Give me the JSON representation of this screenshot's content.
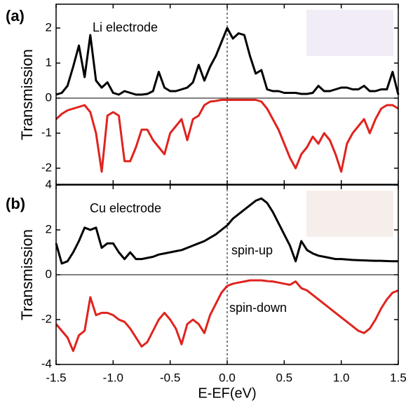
{
  "chart_data": [
    {
      "type": "line",
      "panel_label": "(a)",
      "annotation": "Li electrode",
      "y_label": "Transmission",
      "xlim": [
        -1.5,
        1.5
      ],
      "ylim": [
        -2.46,
        2.68
      ],
      "yticks": [
        -2,
        -1,
        0,
        1,
        2
      ],
      "x": [
        -1.5,
        -1.45,
        -1.4,
        -1.35,
        -1.3,
        -1.25,
        -1.2,
        -1.15,
        -1.1,
        -1.05,
        -1.0,
        -0.95,
        -0.9,
        -0.85,
        -0.8,
        -0.75,
        -0.7,
        -0.65,
        -0.6,
        -0.55,
        -0.5,
        -0.45,
        -0.4,
        -0.35,
        -0.3,
        -0.25,
        -0.2,
        -0.15,
        -0.1,
        -0.05,
        0,
        0.05,
        0.1,
        0.15,
        0.2,
        0.25,
        0.3,
        0.35,
        0.4,
        0.45,
        0.5,
        0.55,
        0.6,
        0.65,
        0.7,
        0.75,
        0.8,
        0.85,
        0.9,
        0.95,
        1.0,
        1.05,
        1.1,
        1.15,
        1.2,
        1.25,
        1.3,
        1.35,
        1.4,
        1.45,
        1.5
      ],
      "series": [
        {
          "color": "#000000",
          "values": [
            0.1,
            0.15,
            0.35,
            0.9,
            1.5,
            0.6,
            1.8,
            0.5,
            0.3,
            0.45,
            0.15,
            0.1,
            0.2,
            0.15,
            0.1,
            0.1,
            0.12,
            0.2,
            0.75,
            0.3,
            0.2,
            0.2,
            0.25,
            0.3,
            0.45,
            0.95,
            0.5,
            0.9,
            1.2,
            1.6,
            2.0,
            1.7,
            1.85,
            1.8,
            1.2,
            0.7,
            0.8,
            0.25,
            0.2,
            0.2,
            0.15,
            0.15,
            0.15,
            0.12,
            0.12,
            0.15,
            0.35,
            0.2,
            0.2,
            0.25,
            0.3,
            0.3,
            0.25,
            0.25,
            0.35,
            0.2,
            0.2,
            0.25,
            0.25,
            0.75,
            0.1
          ]
        },
        {
          "color": "#e0231e",
          "values": [
            -0.6,
            -0.45,
            -0.35,
            -0.3,
            -0.25,
            -0.2,
            -0.4,
            -1.0,
            -2.1,
            -0.5,
            -0.4,
            -0.5,
            -1.8,
            -1.8,
            -1.4,
            -0.9,
            -0.9,
            -1.2,
            -1.4,
            -1.6,
            -1.0,
            -0.8,
            -0.6,
            -1.2,
            -0.6,
            -0.5,
            -0.2,
            -0.1,
            -0.08,
            -0.05,
            -0.05,
            -0.05,
            -0.05,
            -0.05,
            -0.05,
            -0.05,
            -0.1,
            -0.3,
            -0.6,
            -0.9,
            -1.3,
            -1.7,
            -2.0,
            -1.6,
            -1.4,
            -1.1,
            -1.3,
            -1.0,
            -1.2,
            -1.6,
            -2.1,
            -1.3,
            -1.0,
            -0.8,
            -0.6,
            -1.0,
            -0.6,
            -0.3,
            -0.2,
            -0.2,
            -0.3
          ]
        }
      ]
    },
    {
      "type": "line",
      "panel_label": "(b)",
      "annotation": "Cu electrode",
      "y_label": "Transmission",
      "x_label": "E-EF(eV)",
      "xlim": [
        -1.5,
        1.5
      ],
      "ylim": [
        -4,
        4
      ],
      "yticks": [
        -4,
        -2,
        0,
        2,
        4
      ],
      "xticks": [
        -1.5,
        {
          "value": -1.0,
          "label": "-1.0"
        },
        -0.5,
        {
          "value": 0,
          "label": "0.0"
        },
        0.5,
        {
          "value": 1.0,
          "label": "1.0"
        },
        1.5
      ],
      "x": [
        -1.5,
        -1.45,
        -1.4,
        -1.35,
        -1.3,
        -1.25,
        -1.2,
        -1.15,
        -1.1,
        -1.05,
        -1.0,
        -0.95,
        -0.9,
        -0.85,
        -0.8,
        -0.75,
        -0.7,
        -0.65,
        -0.6,
        -0.55,
        -0.5,
        -0.45,
        -0.4,
        -0.35,
        -0.3,
        -0.25,
        -0.2,
        -0.15,
        -0.1,
        -0.05,
        0,
        0.05,
        0.1,
        0.15,
        0.2,
        0.25,
        0.3,
        0.35,
        0.4,
        0.45,
        0.5,
        0.55,
        0.6,
        0.65,
        0.7,
        0.75,
        0.8,
        0.85,
        0.9,
        0.95,
        1.0,
        1.05,
        1.1,
        1.15,
        1.2,
        1.25,
        1.3,
        1.35,
        1.4,
        1.45,
        1.5
      ],
      "series": [
        {
          "name": "spin-up",
          "color": "#000000",
          "values": [
            1.4,
            0.5,
            0.6,
            1.0,
            1.5,
            2.1,
            2.0,
            2.1,
            1.2,
            1.4,
            1.4,
            1.0,
            0.7,
            1.0,
            0.7,
            0.7,
            0.75,
            0.8,
            0.9,
            0.95,
            1.0,
            1.05,
            1.1,
            1.2,
            1.3,
            1.4,
            1.5,
            1.65,
            1.8,
            2.0,
            2.2,
            2.5,
            2.7,
            2.9,
            3.1,
            3.3,
            3.4,
            3.2,
            2.8,
            2.3,
            1.8,
            1.3,
            0.6,
            1.5,
            1.1,
            0.95,
            0.85,
            0.8,
            0.75,
            0.7,
            0.7,
            0.68,
            0.66,
            0.65,
            0.64,
            0.63,
            0.62,
            0.62,
            0.61,
            0.6,
            0.6
          ]
        },
        {
          "name": "spin-down",
          "color": "#e0231e",
          "values": [
            -2.2,
            -2.5,
            -2.8,
            -3.4,
            -2.7,
            -2.5,
            -1.0,
            -1.8,
            -1.7,
            -1.7,
            -1.8,
            -2.0,
            -2.1,
            -2.4,
            -2.8,
            -3.2,
            -3.0,
            -2.5,
            -2.0,
            -1.7,
            -2.0,
            -2.4,
            -3.1,
            -2.2,
            -2.0,
            -2.2,
            -2.6,
            -1.8,
            -1.3,
            -0.8,
            -0.5,
            -0.4,
            -0.35,
            -0.3,
            -0.25,
            -0.25,
            -0.25,
            -0.28,
            -0.3,
            -0.35,
            -0.4,
            -0.45,
            -0.3,
            -0.6,
            -0.7,
            -0.9,
            -1.1,
            -1.3,
            -1.5,
            -1.7,
            -1.9,
            -2.1,
            -2.3,
            -2.5,
            -2.6,
            -2.4,
            -2.0,
            -1.5,
            -1.1,
            -0.8,
            -0.7
          ]
        }
      ]
    }
  ]
}
